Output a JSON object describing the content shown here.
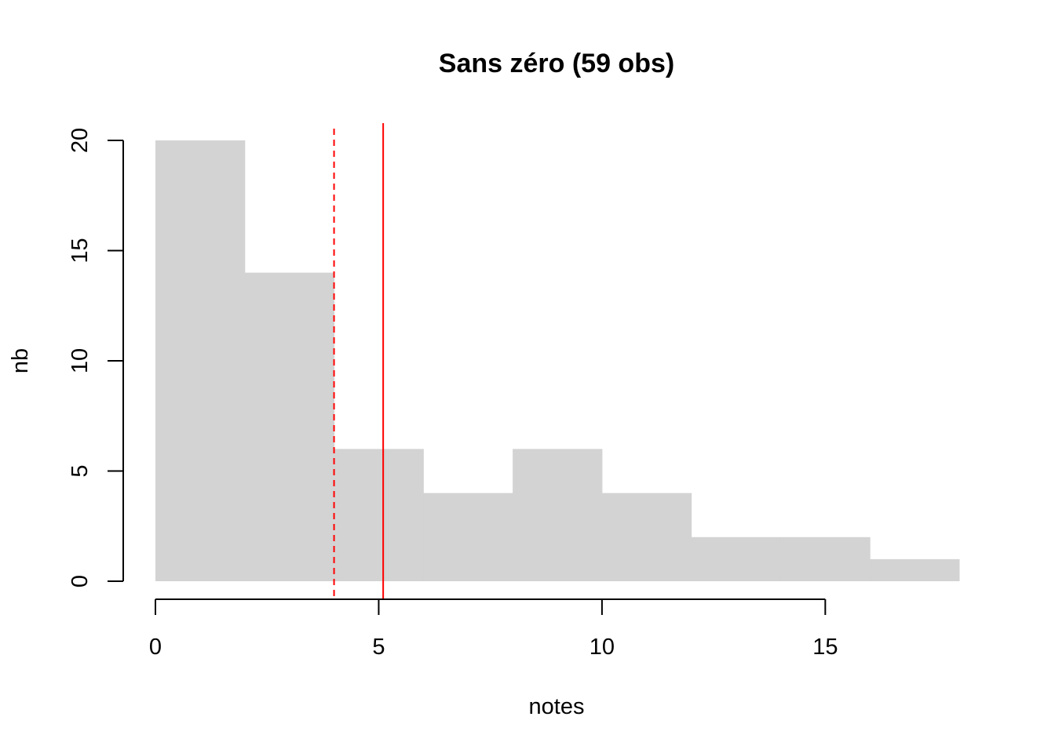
{
  "chart_data": {
    "type": "bar",
    "title": "Sans zéro (59 obs)",
    "xlabel": "notes",
    "ylabel": "nb",
    "bins": [
      {
        "from": 0,
        "to": 2,
        "count": 20
      },
      {
        "from": 2,
        "to": 4,
        "count": 14
      },
      {
        "from": 4,
        "to": 6,
        "count": 6
      },
      {
        "from": 6,
        "to": 8,
        "count": 4
      },
      {
        "from": 8,
        "to": 10,
        "count": 6
      },
      {
        "from": 10,
        "to": 12,
        "count": 4
      },
      {
        "from": 12,
        "to": 14,
        "count": 2
      },
      {
        "from": 14,
        "to": 16,
        "count": 2
      },
      {
        "from": 16,
        "to": 18,
        "count": 1
      }
    ],
    "xlim": [
      0,
      18
    ],
    "ylim": [
      0,
      20
    ],
    "xticks": [
      "0",
      "5",
      "10",
      "15"
    ],
    "yticks": [
      "0",
      "5",
      "10",
      "15",
      "20"
    ],
    "bar_color": "#d3d3d3",
    "reference_lines": [
      {
        "x": 4,
        "style": "dashed",
        "color": "#ff0000"
      },
      {
        "x": 5.1,
        "style": "solid",
        "color": "#ff0000"
      }
    ],
    "grid": false,
    "legend": "none"
  }
}
